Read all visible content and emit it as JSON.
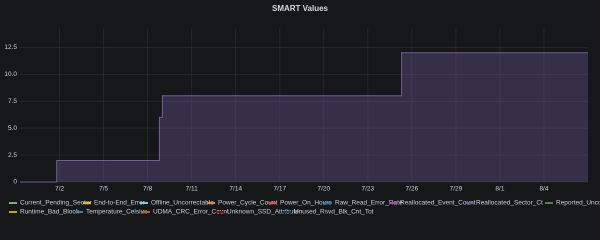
{
  "chart_data": {
    "type": "line",
    "title": "SMART Values",
    "xlim": [
      -0.7,
      38
    ],
    "ylim": [
      0,
      14.3
    ],
    "xticks": [
      {
        "value": 2,
        "label": "7/2"
      },
      {
        "value": 5,
        "label": "7/5"
      },
      {
        "value": 8,
        "label": "7/8"
      },
      {
        "value": 11,
        "label": "7/11"
      },
      {
        "value": 14,
        "label": "7/14"
      },
      {
        "value": 17,
        "label": "7/17"
      },
      {
        "value": 20,
        "label": "7/20"
      },
      {
        "value": 23,
        "label": "7/23"
      },
      {
        "value": 26,
        "label": "7/26"
      },
      {
        "value": 29,
        "label": "7/29"
      },
      {
        "value": 32,
        "label": "8/1"
      },
      {
        "value": 35,
        "label": "8/4"
      }
    ],
    "yticks": [
      0,
      2.5,
      {
        "value": 5,
        "label": "5.0"
      },
      7.5,
      {
        "value": 10,
        "label": "10.0"
      },
      12.5
    ],
    "grid": true,
    "series": [
      {
        "name": "Current_Pending_Sector",
        "color": "#7eb26d"
      },
      {
        "name": "End-to-End_Error",
        "color": "#eab839"
      },
      {
        "name": "Offline_Uncorrectable",
        "color": "#6ed0e0"
      },
      {
        "name": "Power_Cycle_Count",
        "color": "#ef843c"
      },
      {
        "name": "Power_On_Hours",
        "color": "#e24d42"
      },
      {
        "name": "Raw_Read_Error_Rate",
        "color": "#1f78c1"
      },
      {
        "name": "Reallocated_Event_Count",
        "color": "#ba43a9"
      },
      {
        "name": "Reallocated_Sector_Ct",
        "color": "#705da0",
        "x": [
          -0.7,
          1.8,
          1.8,
          8.8,
          8.8,
          9.0,
          9.0,
          25.3,
          25.3,
          38
        ],
        "values": [
          0,
          0,
          2,
          2,
          6,
          6,
          8,
          8,
          12,
          12
        ]
      },
      {
        "name": "Reported_Uncorrect",
        "color": "#508642"
      },
      {
        "name": "Runtime_Bad_Block",
        "color": "#cca300"
      },
      {
        "name": "Temperature_Celsius",
        "color": "#447ebc"
      },
      {
        "name": "UDMA_CRC_Error_Count",
        "color": "#c15c17"
      },
      {
        "name": "Unknown_SSD_Attribute",
        "color": "#890f02"
      },
      {
        "name": "Unused_Rsvd_Blk_Cnt_Tot",
        "color": "#0a437c"
      }
    ]
  }
}
